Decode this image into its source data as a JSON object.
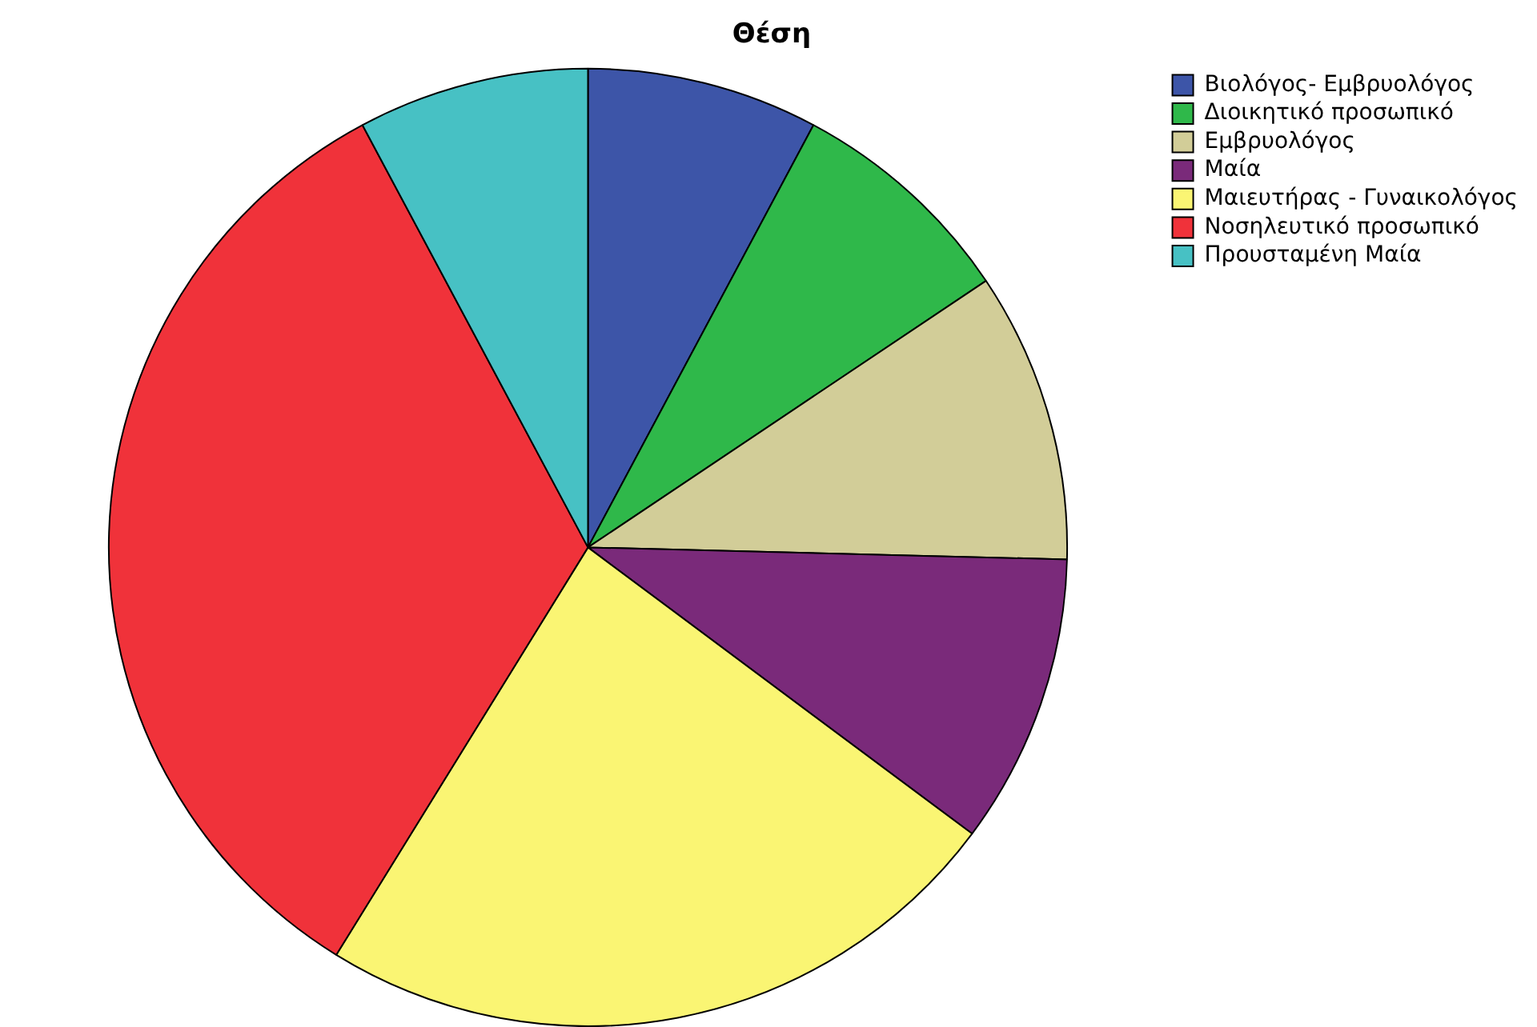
{
  "chart_data": {
    "type": "pie",
    "title": "Θέση",
    "categories": [
      "Βιολόγος- Εμβρυολόγος",
      "Διοικητικό προσωπικό",
      "Εμβρυολόγος",
      "Μαία",
      "Μαιευτήρας - Γυναικολόγος",
      "Νοσηλευτικό προσωπικό",
      "Προυσταμένη Μαία"
    ],
    "values": [
      7.8,
      7.8,
      9.8,
      9.8,
      23.6,
      33.4,
      7.8
    ],
    "colors": [
      "#3d55a8",
      "#2fb84a",
      "#d2cd98",
      "#7a2a7a",
      "#faf573",
      "#f0323a",
      "#47c1c4"
    ],
    "legend": "top right"
  }
}
